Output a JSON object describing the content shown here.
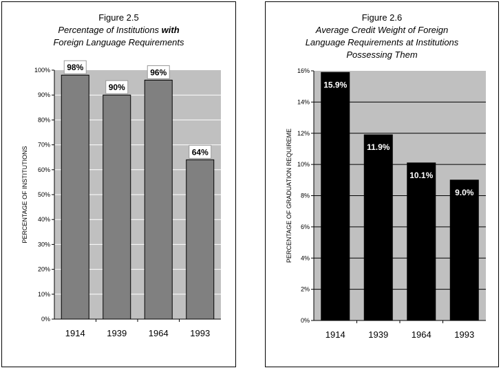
{
  "chart_data": [
    {
      "type": "bar",
      "figure_label": "Figure 2.5",
      "title_line1": "Percentage of Institutions ",
      "title_emph": "with",
      "title_line2": "Foreign Language Requirements",
      "ylabel": "PERCENTAGE OF INSTITUTIONS",
      "xlabel": "",
      "categories": [
        "1914",
        "1939",
        "1964",
        "1993"
      ],
      "values": [
        98,
        90,
        96,
        64
      ],
      "data_labels": [
        "98%",
        "90%",
        "96%",
        "64%"
      ],
      "ylim": [
        0,
        100
      ],
      "yticks": [
        0,
        10,
        20,
        30,
        40,
        50,
        60,
        70,
        80,
        90,
        100
      ],
      "ytick_labels": [
        "0%",
        "10%",
        "20%",
        "30%",
        "40%",
        "50%",
        "60%",
        "70%",
        "80%",
        "90%",
        "100%"
      ],
      "grid": true,
      "colors": {
        "bar": "#808080",
        "plot_bg": "#c0c0c0",
        "grid": "#ffffff",
        "label_box": "#ffffff"
      }
    },
    {
      "type": "bar",
      "figure_label": "Figure 2.6",
      "title_line1": "Average Credit Weight of Foreign",
      "title_line2": "Language Requirements at Institutions",
      "title_line3": "Possessing Them",
      "ylabel": "PERCENTAGE OF GRADUATION REQUIREME",
      "xlabel": "",
      "categories": [
        "1914",
        "1939",
        "1964",
        "1993"
      ],
      "values": [
        15.9,
        11.9,
        10.1,
        9.0
      ],
      "data_labels": [
        "15.9%",
        "11.9%",
        "10.1%",
        "9.0%"
      ],
      "ylim": [
        0,
        16
      ],
      "yticks": [
        0,
        2,
        4,
        6,
        8,
        10,
        12,
        14,
        16
      ],
      "ytick_labels": [
        "0%",
        "2%",
        "4%",
        "6%",
        "8%",
        "10%",
        "12%",
        "14%",
        "16%"
      ],
      "grid": true,
      "colors": {
        "bar": "#000000",
        "plot_bg": "#c0c0c0",
        "grid": "#000000",
        "label_text": "#ffffff"
      }
    }
  ]
}
